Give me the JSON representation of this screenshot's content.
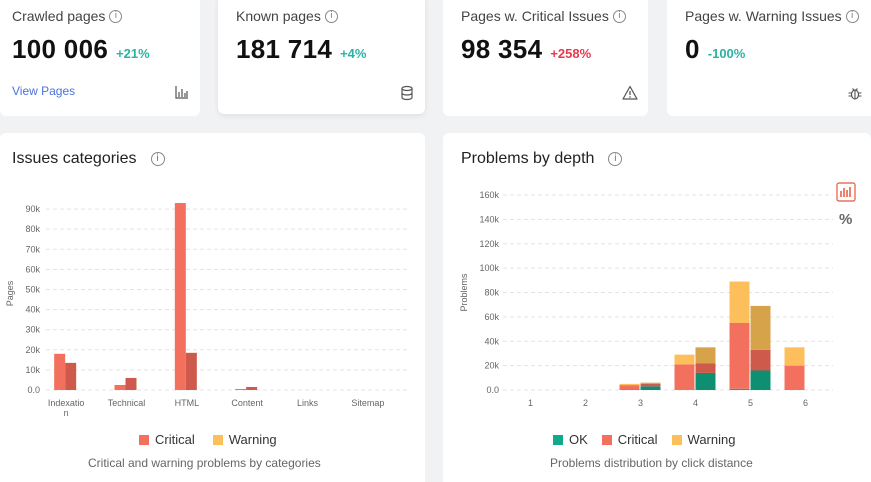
{
  "kpis": [
    {
      "title": "Crawled pages",
      "value": "100 006",
      "delta": "+21%",
      "link": "View Pages",
      "icon": "bar-chart-icon"
    },
    {
      "title": "Known pages",
      "value": "181 714",
      "delta": "+4%",
      "icon": "database-icon"
    },
    {
      "title": "Pages w. Critical Issues",
      "value": "98 354",
      "delta": "+258%",
      "icon": "warning-icon"
    },
    {
      "title": "Pages w. Warning Issues",
      "value": "0",
      "delta": "-100%",
      "icon": "bug-icon"
    }
  ],
  "info_glyph": "i",
  "percent_toggle": "%",
  "colors": {
    "critical": "#f4705e",
    "critical_prev": "#cd5a4b",
    "warning": "#fcbf5b",
    "warning_prev": "#d6a24a",
    "ok": "#12a88a",
    "ok_prev": "#0e8f72"
  },
  "chart_data": [
    {
      "type": "bar",
      "title": "Issues categories",
      "ylabel": "Pages",
      "categories": [
        "Indexation",
        "Technical",
        "HTML",
        "Content",
        "Links",
        "Sitemap"
      ],
      "yticks": [
        "0.0",
        "10k",
        "20k",
        "30k",
        "40k",
        "50k",
        "60k",
        "70k",
        "80k",
        "90k"
      ],
      "ylim": [
        0,
        96000
      ],
      "series": [
        {
          "name": "Critical",
          "values": [
            18000,
            2500,
            93000,
            500,
            0,
            0
          ]
        },
        {
          "values": [
            13500,
            6000,
            18500,
            1500,
            0,
            0
          ]
        }
      ],
      "legend": [
        "Critical",
        "Warning"
      ],
      "subtitle": "Critical and warning problems by categories"
    },
    {
      "type": "bar",
      "title": "Problems by depth",
      "ylabel": "Problems",
      "categories": [
        "1",
        "2",
        "3",
        "4",
        "5",
        "6"
      ],
      "yticks": [
        "0.0",
        "20k",
        "40k",
        "60k",
        "80k",
        "100k",
        "120k",
        "140k",
        "160k"
      ],
      "ylim": [
        0,
        160000
      ],
      "stacked_pairs": [
        [
          {
            "ok": 0,
            "critical": 0,
            "warning": 0
          },
          {
            "ok": 0,
            "critical": 0,
            "warning": 0
          }
        ],
        [
          {
            "ok": 0,
            "critical": 0,
            "warning": 0
          },
          {
            "ok": 0,
            "critical": 0,
            "warning": 0
          }
        ],
        [
          {
            "ok": 500,
            "critical": 3500,
            "warning": 1000
          },
          {
            "ok": 3000,
            "critical": 2000,
            "warning": 1000
          }
        ],
        [
          {
            "ok": 0,
            "critical": 21000,
            "warning": 8000
          },
          {
            "ok": 14000,
            "critical": 8000,
            "warning": 13000
          }
        ],
        [
          {
            "ok": 1000,
            "critical": 54000,
            "warning": 34000
          },
          {
            "ok": 16000,
            "critical": 17000,
            "warning": 36000
          }
        ],
        [
          {
            "ok": 0,
            "critical": 20000,
            "warning": 15000
          },
          {
            "ok": 0,
            "critical": 0,
            "warning": 0
          }
        ]
      ],
      "legend": [
        "OK",
        "Critical",
        "Warning"
      ],
      "subtitle": "Problems distribution by click distance"
    }
  ]
}
